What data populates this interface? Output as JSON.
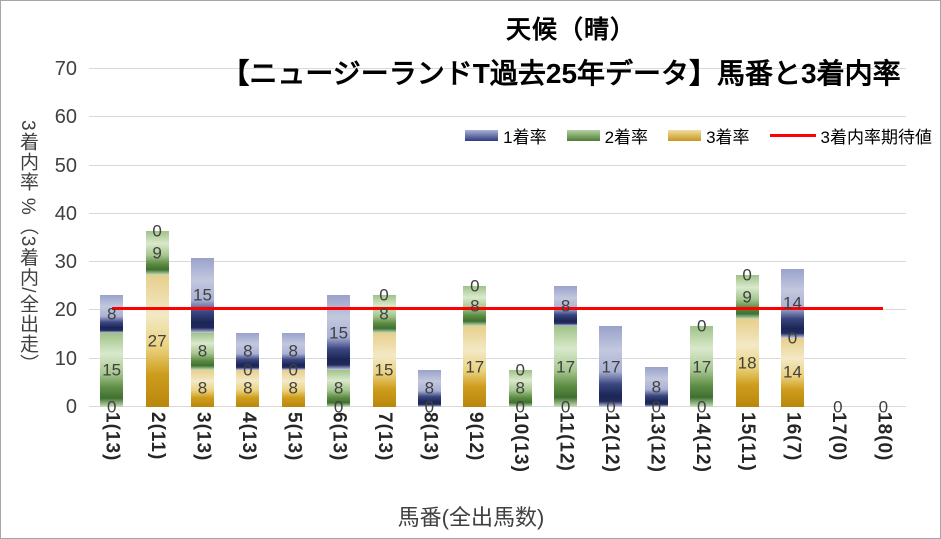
{
  "chart_data": {
    "type": "bar",
    "stacked": true,
    "title": "天候（晴）",
    "subtitle": "【ニュージーランドT過去25年データ】馬番と3着内率",
    "xlabel": "馬番(全出馬数)",
    "ylabel": "3着内率 %（3着内/全出走）",
    "ylim": [
      0,
      70
    ],
    "yticks": [
      0,
      10,
      20,
      30,
      40,
      50,
      60,
      70
    ],
    "grid": true,
    "legend_position": "top-right",
    "categories": [
      "1(13)",
      "2(11)",
      "3(13)",
      "4(13)",
      "5(13)",
      "6(13)",
      "7(13)",
      "8(13)",
      "9(12)",
      "10(13)",
      "11(12)",
      "12(12)",
      "13(12)",
      "14(12)",
      "15(11)",
      "16(7)",
      "17(0)",
      "18(0)"
    ],
    "stack_order_bottom_to_top": [
      "3着率",
      "2着率",
      "1着率"
    ],
    "series": [
      {
        "name": "1着率",
        "values": [
          7.7,
          0,
          15.4,
          7.7,
          7.7,
          15.4,
          0,
          7.7,
          0,
          0,
          8.3,
          16.7,
          8.3,
          0,
          0,
          14.3,
          0,
          0
        ],
        "labels": [
          "8",
          "0",
          "15",
          "8",
          "8",
          "15",
          "0",
          "8",
          "0",
          "0",
          "8",
          "17",
          "8",
          "0",
          "0",
          "14",
          "0",
          "0"
        ],
        "color_main": "#2e3a80",
        "gradient_stops": [
          "#99a2cb 0%",
          "#c3c8de 30%",
          "#aab1d4 56%",
          "#3a4680 72%",
          "#1c2655 86%",
          "#202a60 93%",
          "#ccd0e4 100%"
        ]
      },
      {
        "name": "2着率",
        "values": [
          15.4,
          9.1,
          7.7,
          0,
          0,
          7.7,
          7.7,
          0,
          8.3,
          7.7,
          16.7,
          0,
          0,
          16.7,
          9.1,
          0,
          0,
          0
        ],
        "labels": [
          "15",
          "9",
          "8",
          "0",
          "0",
          "8",
          "8",
          "0",
          "8",
          "8",
          "17",
          "0",
          "0",
          "17",
          "9",
          "0",
          "0",
          "0"
        ],
        "color_main": "#6e9a50",
        "gradient_stops": [
          "#9fc287 0%",
          "#d9e9cc 28%",
          "#a6c68f 55%",
          "#5e8d45 74%",
          "#3f7030 88%",
          "#cbe0bd 100%"
        ]
      },
      {
        "name": "3着率",
        "values": [
          0,
          27.3,
          7.7,
          7.7,
          7.7,
          0,
          15.4,
          0,
          16.7,
          0,
          0,
          0,
          0,
          0,
          18.2,
          14.3,
          0,
          0
        ],
        "labels": [
          "0",
          "27",
          "8",
          "8",
          "8",
          "0",
          "15",
          "0",
          "17",
          "0",
          "0",
          "0",
          "0",
          "0",
          "18",
          "14",
          "0",
          "0"
        ],
        "color_main": "#c8961d",
        "gradient_stops": [
          "#e7cf8c 0%",
          "#f3e9c5 30%",
          "#ead27f 55%",
          "#cf9d1d 75%",
          "#b8860b 100%"
        ]
      }
    ],
    "line_series": {
      "name": "3着内率期待値",
      "value": 20.2,
      "color": "#ff0000"
    },
    "colors": {
      "gridline": "#d9d9d9",
      "label_text": "#404040",
      "title_text": "#000000",
      "legend_blue_top": "#aab2d6",
      "legend_blue_bottom": "#2f3c7e",
      "legend_green_top": "#b7d2a2",
      "legend_green_bottom": "#4e7c36",
      "legend_yellow_top": "#f0dfa4",
      "legend_yellow_bottom": "#c8961d"
    }
  }
}
